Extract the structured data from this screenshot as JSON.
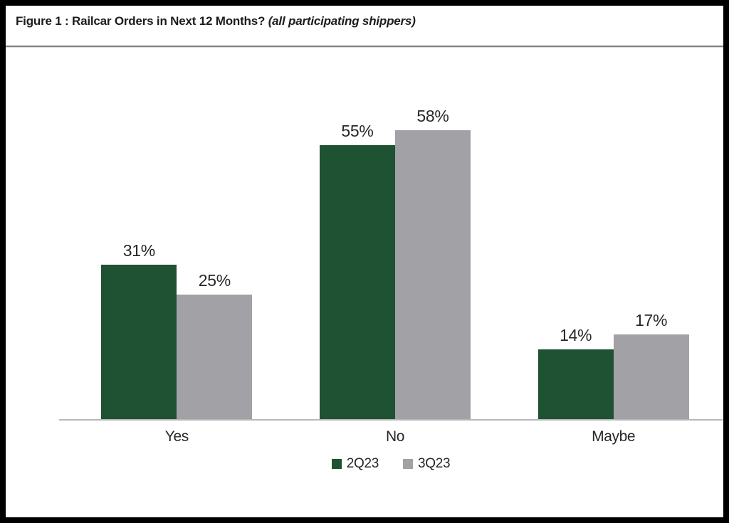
{
  "header": {
    "title": "Figure 1 : Railcar Orders in Next 12 Months?",
    "subtitle_italic": "(all participating shippers)"
  },
  "chart_data": {
    "type": "bar",
    "title": "Figure 1 : Railcar Orders in Next 12 Months? (all participating shippers)",
    "categories": [
      "Yes",
      "No",
      "Maybe"
    ],
    "series": [
      {
        "name": "2Q23",
        "color": "#1e5233",
        "values": [
          31,
          55,
          14
        ],
        "labels": [
          "31%",
          "55%",
          "14%"
        ]
      },
      {
        "name": "3Q23",
        "color": "#a2a1a5",
        "values": [
          25,
          58,
          17
        ],
        "labels": [
          "25%",
          "58%",
          "17%"
        ]
      }
    ],
    "unit": "%",
    "ylim": [
      0,
      62
    ],
    "grid": false,
    "legend_position": "bottom-center",
    "value_labels": "above-bars"
  },
  "colors": {
    "series_green": "#1e5233",
    "series_gray": "#a2a1a5",
    "axis_line": "#b9b7ba",
    "title_divider": "#818181",
    "text": "#272727",
    "frame_border": "#000000",
    "background": "#ffffff"
  }
}
